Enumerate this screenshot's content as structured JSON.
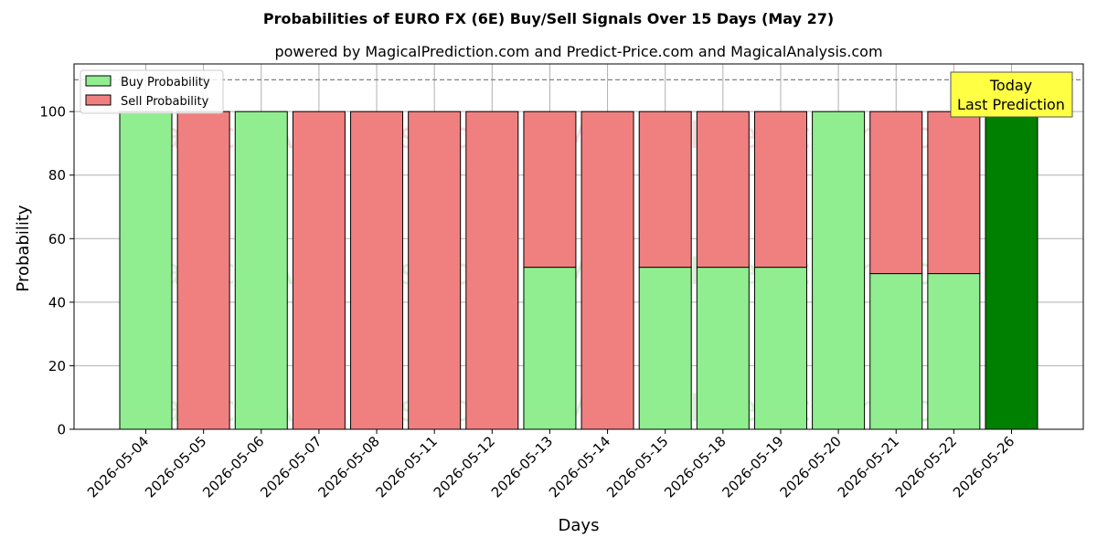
{
  "chart_data": {
    "type": "bar",
    "title": "Probabilities of EURO FX (6E) Buy/Sell Signals Over 15 Days (May 27)",
    "subtitle": "powered by MagicalPrediction.com and Predict-Price.com and MagicalAnalysis.com",
    "xlabel": "Days",
    "ylabel": "Probability",
    "ylim": [
      0,
      115
    ],
    "yticks": [
      0,
      20,
      40,
      60,
      80,
      100
    ],
    "reference_line": 110,
    "grid": true,
    "legend_position": "top-left",
    "categories": [
      "2026-05-04",
      "2026-05-05",
      "2026-05-06",
      "2026-05-07",
      "2026-05-08",
      "2026-05-11",
      "2026-05-12",
      "2026-05-13",
      "2026-05-14",
      "2026-05-15",
      "2026-05-18",
      "2026-05-19",
      "2026-05-20",
      "2026-05-21",
      "2026-05-22",
      "2026-05-26"
    ],
    "series": [
      {
        "name": "Buy Probability",
        "color": "#90ee90",
        "values": [
          100,
          0,
          100,
          0,
          0,
          0,
          0,
          51,
          0,
          51,
          51,
          51,
          100,
          49,
          49,
          100
        ]
      },
      {
        "name": "Sell Probability",
        "color": "#f08080",
        "values": [
          0,
          100,
          0,
          100,
          100,
          100,
          100,
          49,
          100,
          49,
          49,
          49,
          0,
          51,
          51,
          0
        ]
      }
    ],
    "highlight": {
      "index": 15,
      "color": "#008000"
    },
    "annotation": {
      "lines": [
        "Today",
        "Last Prediction"
      ],
      "background": "#ffff44"
    },
    "watermarks": [
      "MagicalAnalysis.com",
      "MagicalPrediction.com"
    ]
  }
}
